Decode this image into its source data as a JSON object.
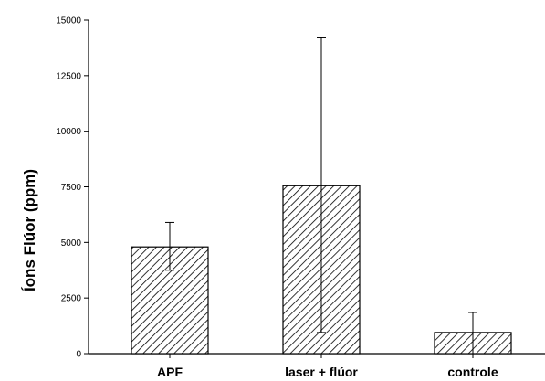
{
  "chart_data": {
    "type": "bar",
    "title": "",
    "xlabel": "",
    "ylabel": "Íons Flúor (ppm)",
    "categories": [
      "APF",
      "laser + flúor",
      "controle"
    ],
    "values": [
      4800,
      7550,
      950
    ],
    "errors": [
      {
        "low": 3750,
        "high": 5900
      },
      {
        "low": 950,
        "high": 14200
      },
      {
        "low": 0,
        "high": 1850
      }
    ],
    "ylim": [
      0,
      15000
    ],
    "yticks": [
      0,
      2500,
      5000,
      7500,
      10000,
      12500,
      15000
    ],
    "ytick_labels": [
      "0",
      "2500",
      "5000",
      "7500",
      "10000",
      "12500",
      "15000"
    ],
    "bar_pattern": "diagonal-hatch",
    "bar_color": "#000000",
    "grid": false,
    "legend": false
  }
}
